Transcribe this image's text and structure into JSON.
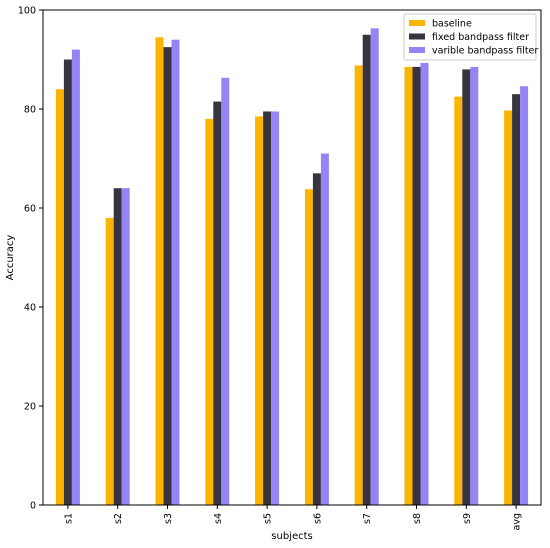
{
  "chart_data": {
    "type": "bar",
    "title": "",
    "xlabel": "subjects",
    "ylabel": "Accuracy",
    "ylim": [
      0,
      100
    ],
    "yticks": [
      0,
      20,
      40,
      60,
      80,
      100
    ],
    "categories": [
      "s1",
      "s2",
      "s3",
      "s4",
      "s5",
      "s6",
      "s7",
      "s8",
      "s9",
      "avg"
    ],
    "grid": false,
    "legend_position": "top-right",
    "series": [
      {
        "name": "baseline",
        "color": "#fbb400",
        "values": [
          84.0,
          58.0,
          94.5,
          78.0,
          78.5,
          63.8,
          88.8,
          88.5,
          82.5,
          79.7
        ]
      },
      {
        "name": "fixed bandpass filter",
        "color": "#38343f",
        "values": [
          90.0,
          64.0,
          92.5,
          81.5,
          79.5,
          67.0,
          95.0,
          88.5,
          88.0,
          83.0
        ]
      },
      {
        "name": "varible bandpass filter",
        "color": "#9484f6",
        "values": [
          92.0,
          64.0,
          94.0,
          86.3,
          79.5,
          71.0,
          96.3,
          89.3,
          88.5,
          84.6
        ]
      }
    ]
  }
}
